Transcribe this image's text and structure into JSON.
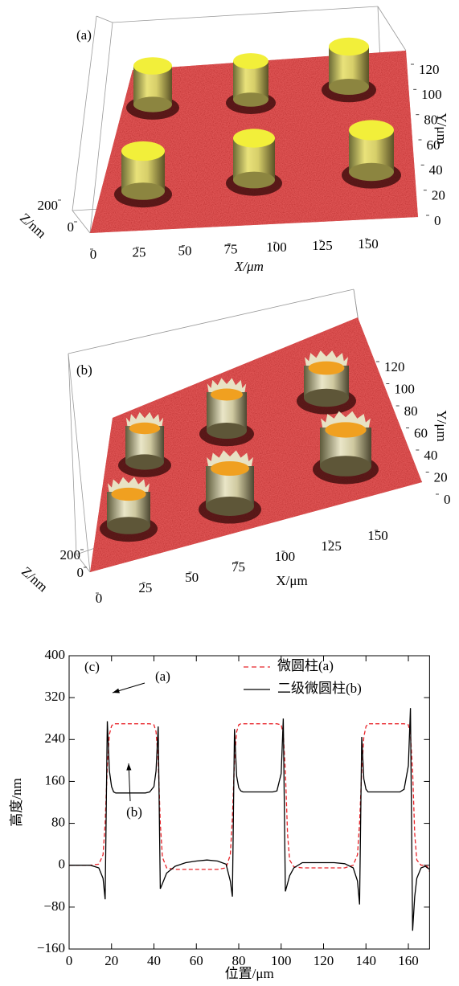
{
  "chart_data": [
    {
      "type": "surface3d",
      "label": "(a)",
      "xlabel": "X/μm",
      "ylabel": "Y/μm",
      "zlabel": "Z/nm",
      "xlim": [
        0,
        150
      ],
      "ylim": [
        0,
        120
      ],
      "zlim": [
        0,
        200
      ],
      "xticks": [
        0,
        25,
        50,
        75,
        100,
        125,
        150
      ],
      "yticks": [
        0,
        20,
        40,
        60,
        80,
        100,
        120
      ],
      "zticks": [
        0,
        200
      ]
    },
    {
      "type": "surface3d",
      "label": "(b)",
      "xlabel": "X/μm",
      "ylabel": "Y/μm",
      "zlabel": "Z/nm",
      "xlim": [
        0,
        150
      ],
      "ylim": [
        0,
        120
      ],
      "zlim": [
        0,
        200
      ],
      "xticks": [
        0,
        25,
        50,
        75,
        100,
        125,
        150
      ],
      "yticks": [
        0,
        20,
        40,
        60,
        80,
        100,
        120
      ],
      "zticks": [
        0,
        200
      ]
    },
    {
      "type": "line",
      "label": "(c)",
      "xlabel": "位置/μm",
      "ylabel": "高度/nm",
      "xlim": [
        0,
        170
      ],
      "ylim": [
        -160,
        400
      ],
      "xticks": [
        0,
        20,
        40,
        60,
        80,
        100,
        120,
        140,
        160
      ],
      "yticks": [
        {
          "value": -160,
          "label": "−160"
        },
        {
          "value": -80,
          "label": "−80"
        },
        0,
        80,
        160,
        240,
        320,
        400
      ],
      "annotations": [
        "(a)",
        "(b)"
      ],
      "x": [
        0,
        5,
        10,
        14,
        16,
        17,
        18,
        19,
        20,
        21,
        22,
        24,
        28,
        32,
        36,
        38,
        40,
        41,
        42,
        43,
        44,
        46,
        50,
        55,
        60,
        65,
        70,
        74,
        76,
        77,
        78,
        79,
        80,
        81,
        82,
        84,
        88,
        92,
        96,
        98,
        100,
        101,
        102,
        103,
        104,
        106,
        110,
        115,
        120,
        125,
        130,
        134,
        136,
        137,
        138,
        139,
        140,
        141,
        142,
        144,
        148,
        152,
        156,
        158,
        160,
        161,
        162,
        163,
        164,
        166,
        168,
        169,
        170
      ],
      "series": [
        {
          "name": "微圆柱(a)",
          "color": "#e8242a",
          "style": "dashed",
          "values": [
            0,
            0,
            0,
            2,
            20,
            80,
            190,
            250,
            266,
            270,
            270,
            270,
            270,
            270,
            270,
            270,
            268,
            255,
            200,
            80,
            15,
            -5,
            -8,
            -8,
            -8,
            -8,
            -8,
            -5,
            20,
            90,
            200,
            255,
            268,
            270,
            270,
            270,
            270,
            270,
            270,
            270,
            268,
            250,
            180,
            60,
            10,
            -3,
            -5,
            -5,
            -5,
            -5,
            -5,
            0,
            20,
            80,
            180,
            245,
            265,
            270,
            270,
            270,
            270,
            270,
            270,
            270,
            268,
            250,
            180,
            60,
            10,
            0,
            0,
            -3,
            -12
          ]
        },
        {
          "name": "二级微圆柱(b)",
          "color": "#000000",
          "style": "solid",
          "values": [
            0,
            0,
            0,
            -5,
            -25,
            -65,
            275,
            180,
            150,
            140,
            138,
            138,
            138,
            138,
            138,
            140,
            150,
            180,
            265,
            -45,
            -35,
            -15,
            -2,
            5,
            8,
            10,
            8,
            2,
            -30,
            -60,
            260,
            170,
            148,
            142,
            140,
            140,
            140,
            140,
            140,
            142,
            175,
            280,
            -50,
            -35,
            -20,
            -5,
            5,
            5,
            5,
            5,
            3,
            -5,
            -30,
            -75,
            245,
            165,
            145,
            140,
            140,
            140,
            140,
            140,
            140,
            145,
            190,
            300,
            -125,
            -60,
            -25,
            -5,
            -2,
            -5,
            -8
          ]
        }
      ]
    }
  ]
}
